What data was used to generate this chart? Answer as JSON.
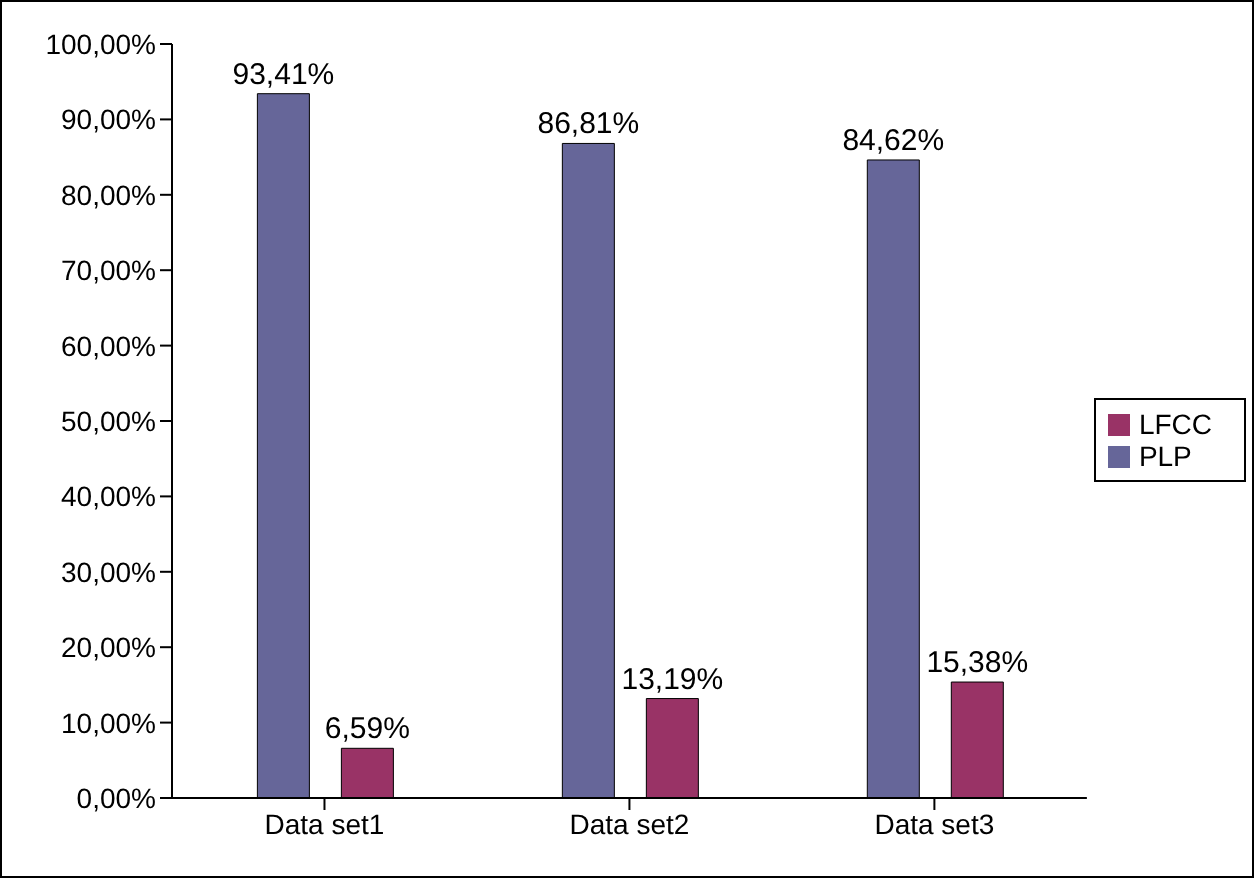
{
  "chart_data": {
    "type": "bar",
    "categories": [
      "Data set1",
      "Data set2",
      "Data set3"
    ],
    "series": [
      {
        "name": "PLP",
        "color": "#666699",
        "values": [
          93.41,
          86.81,
          84.62
        ],
        "value_labels": [
          "93,41%",
          "86,81%",
          "84,62%"
        ]
      },
      {
        "name": "LFCC",
        "color": "#993366",
        "values": [
          6.59,
          13.19,
          15.38
        ],
        "value_labels": [
          "6,59%",
          "13,19%",
          "15,38%"
        ]
      }
    ],
    "ylim": [
      0,
      100
    ],
    "yticks": [
      {
        "value": 0,
        "label": "0,00%"
      },
      {
        "value": 10,
        "label": "10,00%"
      },
      {
        "value": 20,
        "label": "20,00%"
      },
      {
        "value": 30,
        "label": "30,00%"
      },
      {
        "value": 40,
        "label": "40,00%"
      },
      {
        "value": 50,
        "label": "50,00%"
      },
      {
        "value": 60,
        "label": "60,00%"
      },
      {
        "value": 70,
        "label": "70,00%"
      },
      {
        "value": 80,
        "label": "80,00%"
      },
      {
        "value": 90,
        "label": "90,00%"
      },
      {
        "value": 100,
        "label": "100,00%"
      }
    ],
    "grid": false,
    "legend": "right"
  }
}
